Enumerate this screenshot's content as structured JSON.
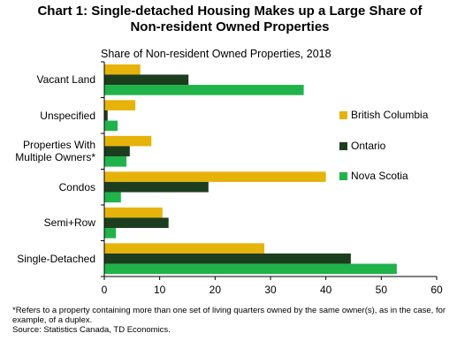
{
  "chart_data": {
    "type": "bar",
    "orientation": "horizontal",
    "title": "Chart 1: Single-detached Housing Makes up a Large Share of Non-resident Owned Properties",
    "subtitle": "Share of Non-resident Owned Properties, 2018",
    "categories": [
      "Vacant Land",
      "Unspecified",
      "Properties With Multiple Owners*",
      "Condos",
      "Semi+Row",
      "Single-Detached"
    ],
    "series": [
      {
        "name": "British Columbia",
        "color": "#e6b30a",
        "values": [
          6.5,
          5.6,
          8.5,
          40.0,
          10.5,
          28.9
        ]
      },
      {
        "name": "Ontario",
        "color": "#1d3d1f",
        "values": [
          15.2,
          0.6,
          4.6,
          18.8,
          11.6,
          44.5
        ]
      },
      {
        "name": "Nova Scotia",
        "color": "#1fb34a",
        "values": [
          36.0,
          2.4,
          4.0,
          3.0,
          2.1,
          52.8
        ]
      }
    ],
    "xlim": [
      0,
      60
    ],
    "xticks": [
      0,
      10,
      20,
      30,
      40,
      50,
      60
    ],
    "legend": "right",
    "grid": false,
    "footnote": "*Refers to a property containing more than one set of living quarters owned by the same owner(s), as in the case, for example, of a duplex.",
    "source": "Source: Statistics Canada, TD Economics."
  }
}
